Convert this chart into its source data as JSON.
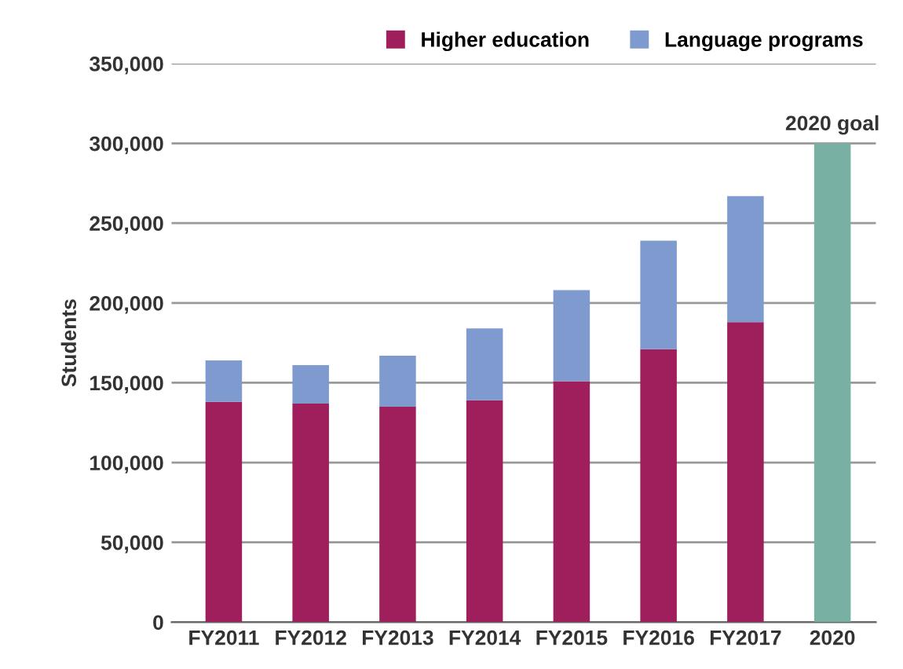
{
  "chart_data": {
    "type": "bar",
    "stacked": true,
    "ylabel": "Students",
    "categories": [
      "FY2011",
      "FY2012",
      "FY2013",
      "FY2014",
      "FY2015",
      "FY2016",
      "FY2017",
      "2020"
    ],
    "series": [
      {
        "name": "Higher education",
        "color": "#9e1f5c",
        "values": [
          138000,
          137000,
          135000,
          139000,
          151000,
          171000,
          188000,
          null
        ]
      },
      {
        "name": "Language programs",
        "color": "#7f9ace",
        "values": [
          26000,
          24000,
          32000,
          45000,
          57000,
          68000,
          79000,
          null
        ]
      },
      {
        "color": "#78b0a4",
        "values": [
          null,
          null,
          null,
          null,
          null,
          null,
          null,
          300000
        ]
      }
    ],
    "annotations": [
      {
        "text": "2020 goal",
        "x": "2020",
        "y": 300000
      }
    ],
    "ylim": [
      0,
      350000
    ],
    "yticks": [
      {
        "value": 0,
        "label": "0"
      },
      {
        "value": 50000,
        "label": "50,000"
      },
      {
        "value": 100000,
        "label": "100,000"
      },
      {
        "value": 150000,
        "label": "150,000"
      },
      {
        "value": 200000,
        "label": "200,000"
      },
      {
        "value": 250000,
        "label": "250,000"
      },
      {
        "value": 300000,
        "label": "300,000"
      },
      {
        "value": 350000,
        "label": "350,000"
      }
    ],
    "grid": "y",
    "legend": "top right"
  }
}
